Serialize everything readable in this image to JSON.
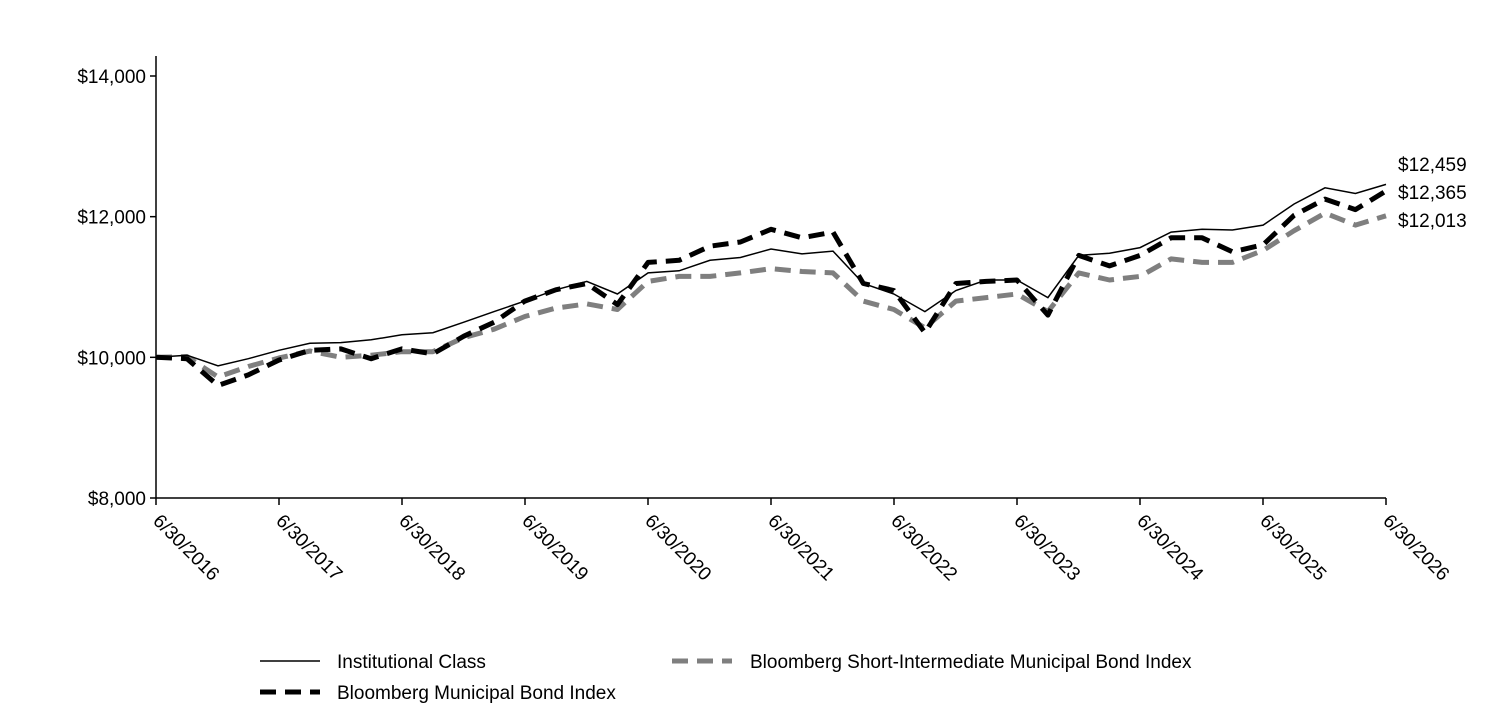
{
  "chart_data": {
    "type": "line",
    "title": "",
    "xlabel": "",
    "ylabel": "",
    "ylim": [
      8000,
      14000
    ],
    "y_ticks": [
      8000,
      10000,
      12000,
      14000
    ],
    "y_tick_labels": [
      "$8,000",
      "$10,000",
      "$12,000",
      "$14,000"
    ],
    "x_range": [
      "2016-06-30",
      "2026-06-30"
    ],
    "x_tick_labels": [
      "6/30/2016",
      "6/30/2017",
      "6/30/2018",
      "6/30/2019",
      "6/30/2020",
      "6/30/2021",
      "6/30/2022",
      "6/30/2023",
      "6/30/2024",
      "6/30/2025",
      "6/30/2026"
    ],
    "grid": false,
    "legend_position": "bottom",
    "end_value_labels": [
      "$12,459",
      "$12,365",
      "$12,013"
    ],
    "series": [
      {
        "name": "Institutional Class",
        "color": "#000000",
        "style": "solid-thin",
        "points": [
          [
            "2016-06-30",
            10000
          ],
          [
            "2016-09-30",
            10030
          ],
          [
            "2016-12-31",
            9880
          ],
          [
            "2017-03-31",
            9980
          ],
          [
            "2017-06-30",
            10100
          ],
          [
            "2017-09-30",
            10200
          ],
          [
            "2017-12-31",
            10210
          ],
          [
            "2018-03-31",
            10250
          ],
          [
            "2018-06-30",
            10320
          ],
          [
            "2018-09-30",
            10350
          ],
          [
            "2018-12-31",
            10500
          ],
          [
            "2019-03-31",
            10650
          ],
          [
            "2019-06-30",
            10800
          ],
          [
            "2019-09-30",
            10960
          ],
          [
            "2019-12-31",
            11080
          ],
          [
            "2020-03-31",
            10900
          ],
          [
            "2020-06-30",
            11200
          ],
          [
            "2020-09-30",
            11230
          ],
          [
            "2020-12-31",
            11380
          ],
          [
            "2021-03-31",
            11420
          ],
          [
            "2021-06-30",
            11540
          ],
          [
            "2021-09-30",
            11470
          ],
          [
            "2021-12-31",
            11510
          ],
          [
            "2022-03-31",
            11050
          ],
          [
            "2022-06-30",
            10900
          ],
          [
            "2022-09-30",
            10650
          ],
          [
            "2022-12-31",
            10950
          ],
          [
            "2023-03-31",
            11100
          ],
          [
            "2023-06-30",
            11100
          ],
          [
            "2023-09-30",
            10850
          ],
          [
            "2023-12-31",
            11450
          ],
          [
            "2024-03-31",
            11480
          ],
          [
            "2024-06-30",
            11560
          ],
          [
            "2024-09-30",
            11780
          ],
          [
            "2024-12-31",
            11820
          ],
          [
            "2025-03-31",
            11810
          ],
          [
            "2025-06-30",
            11880
          ],
          [
            "2025-09-30",
            12180
          ],
          [
            "2025-12-31",
            12410
          ],
          [
            "2026-03-31",
            12330
          ],
          [
            "2026-06-30",
            12459
          ]
        ]
      },
      {
        "name": "Bloomberg Municipal Bond Index",
        "color": "#000000",
        "style": "dashed-thick",
        "points": [
          [
            "2016-06-30",
            10000
          ],
          [
            "2016-09-30",
            9980
          ],
          [
            "2016-12-31",
            9600
          ],
          [
            "2017-03-31",
            9750
          ],
          [
            "2017-06-30",
            9960
          ],
          [
            "2017-09-30",
            10100
          ],
          [
            "2017-12-31",
            10120
          ],
          [
            "2018-03-31",
            9980
          ],
          [
            "2018-06-30",
            10120
          ],
          [
            "2018-09-30",
            10050
          ],
          [
            "2018-12-31",
            10300
          ],
          [
            "2019-03-31",
            10500
          ],
          [
            "2019-06-30",
            10800
          ],
          [
            "2019-09-30",
            10960
          ],
          [
            "2019-12-31",
            11050
          ],
          [
            "2020-03-31",
            10750
          ],
          [
            "2020-06-30",
            11350
          ],
          [
            "2020-09-30",
            11380
          ],
          [
            "2020-12-31",
            11580
          ],
          [
            "2021-03-31",
            11640
          ],
          [
            "2021-06-30",
            11820
          ],
          [
            "2021-09-30",
            11700
          ],
          [
            "2021-12-31",
            11780
          ],
          [
            "2022-03-31",
            11050
          ],
          [
            "2022-06-30",
            10950
          ],
          [
            "2022-09-30",
            10350
          ],
          [
            "2022-12-31",
            11050
          ],
          [
            "2023-03-31",
            11080
          ],
          [
            "2023-06-30",
            11100
          ],
          [
            "2023-09-30",
            10600
          ],
          [
            "2023-12-31",
            11450
          ],
          [
            "2024-03-31",
            11300
          ],
          [
            "2024-06-30",
            11450
          ],
          [
            "2024-09-30",
            11700
          ],
          [
            "2024-12-31",
            11700
          ],
          [
            "2025-03-31",
            11500
          ],
          [
            "2025-06-30",
            11600
          ],
          [
            "2025-09-30",
            12020
          ],
          [
            "2025-12-31",
            12250
          ],
          [
            "2026-03-31",
            12100
          ],
          [
            "2026-06-30",
            12365
          ]
        ]
      },
      {
        "name": "Bloomberg Short-Intermediate Municipal Bond Index",
        "color": "#7f7f7f",
        "style": "dashed-thick",
        "points": [
          [
            "2016-06-30",
            10000
          ],
          [
            "2016-09-30",
            10010
          ],
          [
            "2016-12-31",
            9720
          ],
          [
            "2017-03-31",
            9870
          ],
          [
            "2017-06-30",
            9990
          ],
          [
            "2017-09-30",
            10090
          ],
          [
            "2017-12-31",
            10000
          ],
          [
            "2018-03-31",
            10030
          ],
          [
            "2018-06-30",
            10080
          ],
          [
            "2018-09-30",
            10080
          ],
          [
            "2018-12-31",
            10280
          ],
          [
            "2019-03-31",
            10400
          ],
          [
            "2019-06-30",
            10580
          ],
          [
            "2019-09-30",
            10700
          ],
          [
            "2019-12-31",
            10760
          ],
          [
            "2020-03-31",
            10680
          ],
          [
            "2020-06-30",
            11080
          ],
          [
            "2020-09-30",
            11150
          ],
          [
            "2020-12-31",
            11150
          ],
          [
            "2021-03-31",
            11200
          ],
          [
            "2021-06-30",
            11260
          ],
          [
            "2021-09-30",
            11220
          ],
          [
            "2021-12-31",
            11200
          ],
          [
            "2022-03-31",
            10800
          ],
          [
            "2022-06-30",
            10680
          ],
          [
            "2022-09-30",
            10420
          ],
          [
            "2022-12-31",
            10800
          ],
          [
            "2023-03-31",
            10850
          ],
          [
            "2023-06-30",
            10900
          ],
          [
            "2023-09-30",
            10650
          ],
          [
            "2023-12-31",
            11200
          ],
          [
            "2024-03-31",
            11100
          ],
          [
            "2024-06-30",
            11150
          ],
          [
            "2024-09-30",
            11400
          ],
          [
            "2024-12-31",
            11350
          ],
          [
            "2025-03-31",
            11350
          ],
          [
            "2025-06-30",
            11520
          ],
          [
            "2025-09-30",
            11800
          ],
          [
            "2025-12-31",
            12050
          ],
          [
            "2026-03-31",
            11880
          ],
          [
            "2026-06-30",
            12013
          ]
        ]
      }
    ]
  }
}
